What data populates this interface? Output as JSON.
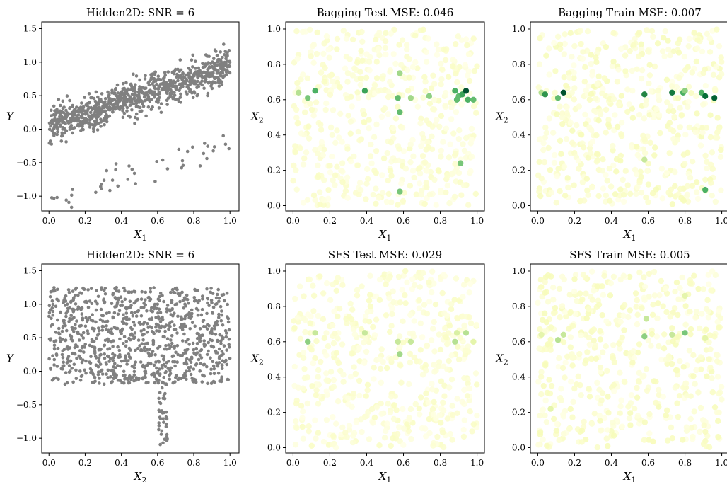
{
  "figure": {
    "background": "#ffffff"
  },
  "chart_data": [
    {
      "type": "scatter",
      "title": "Hidden2D: SNR = 6",
      "xlabel": "X",
      "xlabel_sub": "1",
      "ylabel": "Y",
      "ylabel_sub": "",
      "xlim": [
        -0.04,
        1.05
      ],
      "ylim": [
        -1.22,
        1.6
      ],
      "xticks": [
        0,
        0.2,
        0.4,
        0.6,
        0.8,
        1.0
      ],
      "xtick_labels": [
        "0.0",
        "0.2",
        "0.4",
        "0.6",
        "0.8",
        "1.0"
      ],
      "yticks": [
        -1,
        -0.5,
        0,
        0.5,
        1,
        1.5
      ],
      "ytick_labels": [
        "−1.0",
        "−0.5",
        "0.0",
        "0.5",
        "1.0",
        "1.5"
      ],
      "color": "#808080",
      "points_summary": "about 1000 grey points; main band rises linearly from about 0.05 at x=0 to about 0.95 at x=1 with noise; a sparse outlier branch sits about 1.2 below the band"
    },
    {
      "type": "scatter",
      "title": "Bagging Test MSE: 0.046",
      "xlabel": "X",
      "xlabel_sub": "1",
      "ylabel": "X",
      "ylabel_sub": "2",
      "xlim": [
        -0.04,
        1.04
      ],
      "ylim": [
        -0.03,
        1.04
      ],
      "xticks": [
        0,
        0.2,
        0.4,
        0.6,
        0.8,
        1.0
      ],
      "xtick_labels": [
        "0.0",
        "0.2",
        "0.4",
        "0.6",
        "0.8",
        "1.0"
      ],
      "yticks": [
        0,
        0.2,
        0.4,
        0.6,
        0.8,
        1.0
      ],
      "ytick_labels": [
        "0.0",
        "0.2",
        "0.4",
        "0.6",
        "0.8",
        "1.0"
      ],
      "colormap": [
        "#ffffe5",
        "#f7fcb9",
        "#d9f0a3",
        "#addd8e",
        "#78c679",
        "#41ab5d",
        "#238443",
        "#006837",
        "#004529"
      ],
      "highlight_points": [
        [
          0.03,
          0.64
        ],
        [
          0.08,
          0.61
        ],
        [
          0.12,
          0.65
        ],
        [
          0.39,
          0.65
        ],
        [
          0.57,
          0.61
        ],
        [
          0.58,
          0.53
        ],
        [
          0.58,
          0.75
        ],
        [
          0.64,
          0.61
        ],
        [
          0.74,
          0.62
        ],
        [
          0.88,
          0.65
        ],
        [
          0.89,
          0.6
        ],
        [
          0.9,
          0.62
        ],
        [
          0.92,
          0.63
        ],
        [
          0.94,
          0.65
        ],
        [
          0.95,
          0.6
        ],
        [
          0.98,
          0.6
        ],
        [
          0.91,
          0.24
        ],
        [
          0.58,
          0.08
        ]
      ],
      "highlight_values": [
        0.35,
        0.5,
        0.6,
        0.65,
        0.55,
        0.55,
        0.4,
        0.4,
        0.45,
        0.6,
        0.55,
        0.55,
        0.65,
        0.95,
        0.6,
        0.55,
        0.5,
        0.5
      ]
    },
    {
      "type": "scatter",
      "title": "Bagging Train MSE: 0.007",
      "xlabel": "X",
      "xlabel_sub": "1",
      "ylabel": "X",
      "ylabel_sub": "2",
      "xlim": [
        -0.04,
        1.04
      ],
      "ylim": [
        -0.03,
        1.04
      ],
      "xticks": [
        0,
        0.2,
        0.4,
        0.6,
        0.8,
        1.0
      ],
      "xtick_labels": [
        "0.0",
        "0.2",
        "0.4",
        "0.6",
        "0.8",
        "1.0"
      ],
      "yticks": [
        0,
        0.2,
        0.4,
        0.6,
        0.8,
        1.0
      ],
      "ytick_labels": [
        "0.0",
        "0.2",
        "0.4",
        "0.6",
        "0.8",
        "1.0"
      ],
      "colormap": [
        "#ffffe5",
        "#f7fcb9",
        "#d9f0a3",
        "#addd8e",
        "#78c679",
        "#41ab5d",
        "#238443",
        "#006837",
        "#004529"
      ],
      "highlight_points": [
        [
          0.02,
          0.64
        ],
        [
          0.04,
          0.63
        ],
        [
          0.11,
          0.61
        ],
        [
          0.14,
          0.64
        ],
        [
          0.58,
          0.63
        ],
        [
          0.73,
          0.64
        ],
        [
          0.79,
          0.64
        ],
        [
          0.8,
          0.65
        ],
        [
          0.89,
          0.64
        ],
        [
          0.91,
          0.62
        ],
        [
          0.96,
          0.61
        ],
        [
          0.91,
          0.09
        ],
        [
          0.58,
          0.26
        ]
      ],
      "highlight_values": [
        0.35,
        0.7,
        0.55,
        0.95,
        0.75,
        0.8,
        0.6,
        0.45,
        0.6,
        0.85,
        0.9,
        0.6,
        0.3
      ]
    },
    {
      "type": "scatter",
      "title": "Hidden2D: SNR = 6",
      "xlabel": "X",
      "xlabel_sub": "2",
      "ylabel": "Y",
      "ylabel_sub": "",
      "xlim": [
        -0.04,
        1.05
      ],
      "ylim": [
        -1.22,
        1.6
      ],
      "xticks": [
        0,
        0.2,
        0.4,
        0.6,
        0.8,
        1.0
      ],
      "xtick_labels": [
        "0.0",
        "0.2",
        "0.4",
        "0.6",
        "0.8",
        "1.0"
      ],
      "yticks": [
        -1,
        -0.5,
        0,
        0.5,
        1,
        1.5
      ],
      "ytick_labels": [
        "−1.0",
        "−0.5",
        "0.0",
        "0.5",
        "1.0",
        "1.5"
      ],
      "color": "#808080",
      "points_summary": "about 1000 grey points spread uniformly between about -0.2 and 1.25 across x, with a narrow dip down to about -1.1 near x=0.63"
    },
    {
      "type": "scatter",
      "title": "SFS Test MSE: 0.029",
      "xlabel": "X",
      "xlabel_sub": "1",
      "ylabel": "X",
      "ylabel_sub": "2",
      "xlim": [
        -0.04,
        1.04
      ],
      "ylim": [
        -0.03,
        1.04
      ],
      "xticks": [
        0,
        0.2,
        0.4,
        0.6,
        0.8,
        1.0
      ],
      "xtick_labels": [
        "0.0",
        "0.2",
        "0.4",
        "0.6",
        "0.8",
        "1.0"
      ],
      "yticks": [
        0,
        0.2,
        0.4,
        0.6,
        0.8,
        1.0
      ],
      "ytick_labels": [
        "0.0",
        "0.2",
        "0.4",
        "0.6",
        "0.8",
        "1.0"
      ],
      "colormap": [
        "#ffffe5",
        "#f7fcb9",
        "#d9f0a3",
        "#addd8e",
        "#78c679",
        "#41ab5d",
        "#238443",
        "#006837",
        "#004529"
      ],
      "highlight_points": [
        [
          0.08,
          0.6
        ],
        [
          0.12,
          0.65
        ],
        [
          0.39,
          0.65
        ],
        [
          0.57,
          0.6
        ],
        [
          0.58,
          0.53
        ],
        [
          0.64,
          0.6
        ],
        [
          0.88,
          0.6
        ],
        [
          0.89,
          0.65
        ],
        [
          0.94,
          0.65
        ],
        [
          0.98,
          0.6
        ]
      ],
      "highlight_values": [
        0.45,
        0.3,
        0.3,
        0.3,
        0.4,
        0.3,
        0.35,
        0.25,
        0.35,
        0.2
      ]
    },
    {
      "type": "scatter",
      "title": "SFS Train MSE: 0.005",
      "xlabel": "X",
      "xlabel_sub": "1",
      "ylabel": "X",
      "ylabel_sub": "2",
      "xlim": [
        -0.04,
        1.04
      ],
      "ylim": [
        -0.03,
        1.04
      ],
      "xticks": [
        0,
        0.2,
        0.4,
        0.6,
        0.8,
        1.0
      ],
      "xtick_labels": [
        "0.0",
        "0.2",
        "0.4",
        "0.6",
        "0.8",
        "1.0"
      ],
      "yticks": [
        0,
        0.2,
        0.4,
        0.6,
        0.8,
        1.0
      ],
      "ytick_labels": [
        "0.0",
        "0.2",
        "0.4",
        "0.6",
        "0.8",
        "1.0"
      ],
      "colormap": [
        "#ffffe5",
        "#f7fcb9",
        "#d9f0a3",
        "#addd8e",
        "#78c679",
        "#41ab5d",
        "#238443",
        "#006837",
        "#004529"
      ],
      "highlight_points": [
        [
          0.02,
          0.64
        ],
        [
          0.11,
          0.61
        ],
        [
          0.14,
          0.64
        ],
        [
          0.58,
          0.63
        ],
        [
          0.59,
          0.73
        ],
        [
          0.73,
          0.64
        ],
        [
          0.8,
          0.65
        ],
        [
          0.07,
          0.22
        ],
        [
          0.91,
          0.62
        ],
        [
          0.8,
          0.86
        ]
      ],
      "highlight_values": [
        0.2,
        0.35,
        0.3,
        0.45,
        0.3,
        0.3,
        0.5,
        0.2,
        0.2,
        0.2
      ]
    }
  ]
}
